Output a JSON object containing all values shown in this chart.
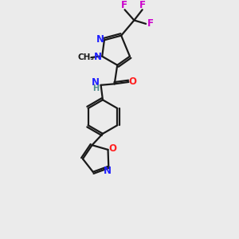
{
  "background_color": "#ebebeb",
  "bond_color": "#1a1a1a",
  "atom_colors": {
    "N": "#2020ff",
    "O": "#ff2020",
    "F": "#cc00cc",
    "H": "#4a8a8a",
    "C": "#1a1a1a"
  },
  "figsize": [
    3.0,
    3.0
  ],
  "dpi": 100
}
